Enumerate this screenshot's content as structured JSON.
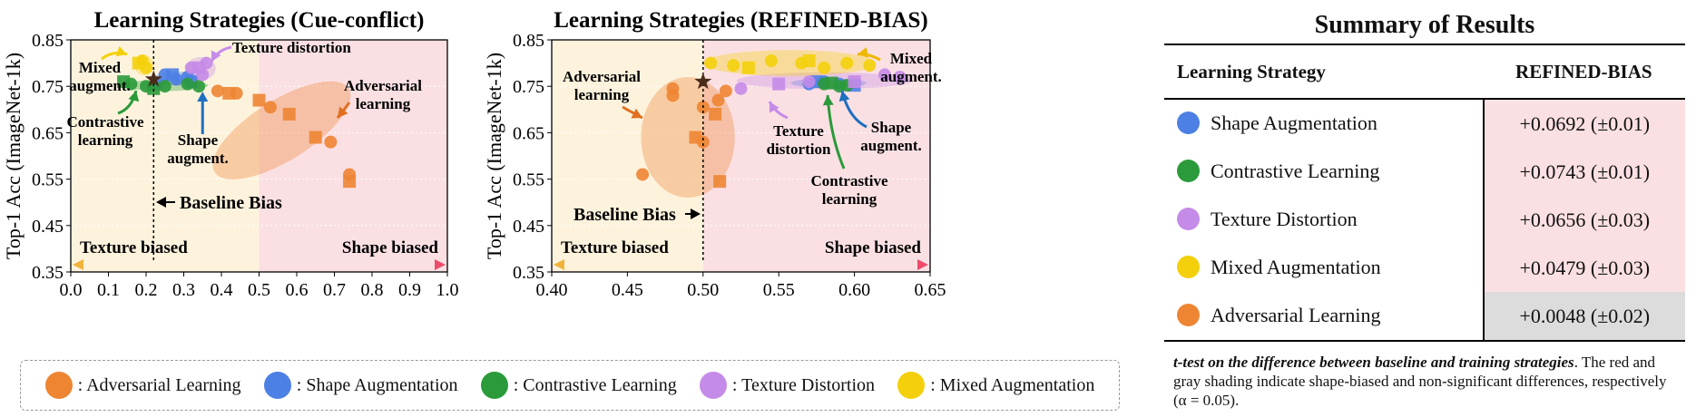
{
  "colors": {
    "adversarial": "#ee8533",
    "shape": "#4d80e4",
    "contrastive": "#2a9a3a",
    "texture": "#c58be8",
    "mixed": "#f4d00c",
    "texture_bg": "#fdf3dd",
    "shape_bg": "#fbe0e3",
    "sig_bg": "#fbe0e3",
    "nonsig_bg": "#dcdcdc"
  },
  "chart_data": [
    {
      "type": "scatter",
      "title": "Learning Strategies (Cue-conflict)",
      "xlabel": "",
      "ylabel": "Top-1 Acc (ImageNet-1k)",
      "xlim": [
        0.0,
        1.0
      ],
      "ylim": [
        0.35,
        0.85
      ],
      "xticks": [
        "0.0",
        "0.1",
        "0.2",
        "0.3",
        "0.4",
        "0.5",
        "0.6",
        "0.7",
        "0.8",
        "0.9",
        "1.0"
      ],
      "yticks": [
        "0.35",
        "0.45",
        "0.55",
        "0.65",
        "0.75",
        "0.85"
      ],
      "shape_region_start": 0.5,
      "baseline": {
        "x": 0.22,
        "y": 0.765,
        "label": "Baseline Bias"
      },
      "axis_arrow": {
        "left_label": "Texture biased",
        "right_label": "Shape biased"
      },
      "series": [
        {
          "name": "Adversarial Learning",
          "key": "adversarial",
          "circles": [
            [
              0.39,
              0.74
            ],
            [
              0.44,
              0.735
            ],
            [
              0.53,
              0.705
            ],
            [
              0.69,
              0.63
            ],
            [
              0.74,
              0.56
            ]
          ],
          "squares": [
            [
              0.42,
              0.735
            ],
            [
              0.5,
              0.72
            ],
            [
              0.58,
              0.69
            ],
            [
              0.65,
              0.64
            ],
            [
              0.74,
              0.545
            ]
          ],
          "ellipse": {
            "cx": 0.56,
            "cy": 0.655,
            "rx": 0.21,
            "ry": 0.065,
            "angle": -32
          }
        },
        {
          "name": "Shape Augmentation",
          "key": "shape",
          "circles": [
            [
              0.25,
              0.775
            ],
            [
              0.28,
              0.765
            ],
            [
              0.31,
              0.77
            ],
            [
              0.23,
              0.755
            ]
          ],
          "squares": [
            [
              0.27,
              0.775
            ],
            [
              0.32,
              0.76
            ]
          ],
          "ellipse": {
            "cx": 0.28,
            "cy": 0.767,
            "rx": 0.06,
            "ry": 0.015,
            "angle": 0
          }
        },
        {
          "name": "Contrastive Learning",
          "key": "contrastive",
          "circles": [
            [
              0.16,
              0.755
            ],
            [
              0.2,
              0.75
            ],
            [
              0.25,
              0.75
            ],
            [
              0.31,
              0.755
            ],
            [
              0.34,
              0.75
            ]
          ],
          "squares": [
            [
              0.14,
              0.76
            ],
            [
              0.22,
              0.745
            ]
          ],
          "ellipse": {
            "cx": 0.25,
            "cy": 0.752,
            "rx": 0.115,
            "ry": 0.012,
            "angle": 0
          }
        },
        {
          "name": "Texture Distortion",
          "key": "texture",
          "circles": [
            [
              0.32,
              0.79
            ],
            [
              0.35,
              0.775
            ],
            [
              0.36,
              0.8
            ]
          ],
          "squares": [
            [
              0.34,
              0.79
            ]
          ],
          "ellipse": {
            "cx": 0.345,
            "cy": 0.788,
            "rx": 0.04,
            "ry": 0.025,
            "angle": 0
          }
        },
        {
          "name": "Mixed Augmentation",
          "key": "mixed",
          "circles": [
            [
              0.19,
              0.805
            ],
            [
              0.2,
              0.79
            ]
          ],
          "squares": [
            [
              0.18,
              0.8
            ]
          ],
          "ellipse": {
            "cx": 0.195,
            "cy": 0.795,
            "rx": 0.025,
            "ry": 0.022,
            "angle": 0
          }
        }
      ],
      "annotations": {
        "mixed": "Mixed augment.",
        "contrastive": "Contrastive learning",
        "shape": "Shape augment.",
        "texture": "Texture distortion",
        "adversarial": "Adversarial learning"
      }
    },
    {
      "type": "scatter",
      "title": "Learning Strategies (REFINED-BIAS)",
      "xlabel": "",
      "ylabel": "Top-1 Acc (ImageNet-1k)",
      "xlim": [
        0.4,
        0.65
      ],
      "ylim": [
        0.35,
        0.85
      ],
      "xticks": [
        "0.40",
        "0.45",
        "0.50",
        "0.55",
        "0.60",
        "0.65"
      ],
      "yticks": [
        "0.35",
        "0.45",
        "0.55",
        "0.65",
        "0.75",
        "0.85"
      ],
      "shape_region_start": 0.5,
      "baseline": {
        "x": 0.5,
        "y": 0.76,
        "label": "Baseline Bias"
      },
      "axis_arrow": {
        "left_label": "Texture biased",
        "right_label": "Shape biased"
      },
      "series": [
        {
          "name": "Adversarial Learning",
          "key": "adversarial",
          "circles": [
            [
              0.46,
              0.56
            ],
            [
              0.48,
              0.745
            ],
            [
              0.48,
              0.73
            ],
            [
              0.5,
              0.705
            ],
            [
              0.5,
              0.63
            ],
            [
              0.51,
              0.72
            ],
            [
              0.515,
              0.74
            ]
          ],
          "squares": [
            [
              0.495,
              0.64
            ],
            [
              0.508,
              0.69
            ],
            [
              0.511,
              0.545
            ]
          ],
          "ellipse": {
            "cx": 0.49,
            "cy": 0.64,
            "rx": 0.031,
            "ry": 0.13,
            "angle": 0
          }
        },
        {
          "name": "Shape Augmentation",
          "key": "shape",
          "circles": [
            [
              0.57,
              0.755
            ],
            [
              0.58,
              0.76
            ],
            [
              0.59,
              0.755
            ]
          ],
          "squares": [
            [
              0.575,
              0.76
            ],
            [
              0.6,
              0.752
            ]
          ],
          "ellipse": {
            "cx": 0.583,
            "cy": 0.757,
            "rx": 0.025,
            "ry": 0.01,
            "angle": 0
          }
        },
        {
          "name": "Contrastive Learning",
          "key": "contrastive",
          "circles": [
            [
              0.58,
              0.755
            ],
            [
              0.59,
              0.75
            ],
            [
              0.595,
              0.752
            ]
          ],
          "squares": [
            [
              0.585,
              0.757
            ]
          ],
          "ellipse": {
            "cx": 0.585,
            "cy": 0.755,
            "rx": 0.02,
            "ry": 0.008,
            "angle": 0
          }
        },
        {
          "name": "Texture Distortion",
          "key": "texture",
          "circles": [
            [
              0.525,
              0.745
            ],
            [
              0.57,
              0.76
            ],
            [
              0.62,
              0.775
            ],
            [
              0.63,
              0.77
            ]
          ],
          "squares": [
            [
              0.55,
              0.755
            ],
            [
              0.6,
              0.76
            ]
          ],
          "ellipse": {
            "cx": 0.58,
            "cy": 0.762,
            "rx": 0.058,
            "ry": 0.018,
            "angle": 0
          }
        },
        {
          "name": "Mixed Augmentation",
          "key": "mixed",
          "circles": [
            [
              0.505,
              0.8
            ],
            [
              0.52,
              0.795
            ],
            [
              0.545,
              0.805
            ],
            [
              0.565,
              0.8
            ],
            [
              0.58,
              0.79
            ],
            [
              0.595,
              0.8
            ],
            [
              0.61,
              0.795
            ]
          ],
          "squares": [
            [
              0.53,
              0.79
            ],
            [
              0.57,
              0.805
            ]
          ],
          "ellipse": {
            "cx": 0.557,
            "cy": 0.8,
            "rx": 0.057,
            "ry": 0.028,
            "angle": 0
          }
        }
      ],
      "annotations": {
        "mixed": "Mixed augment.",
        "contrastive": "Contrastive learning",
        "shape": "Shape augment.",
        "texture": "Texture distortion",
        "adversarial": "Adversarial learning"
      }
    }
  ],
  "legend": {
    "items": [
      {
        "label": ": Adversarial Learning",
        "key": "adversarial"
      },
      {
        "label": ": Shape Augmentation",
        "key": "shape"
      },
      {
        "label": ": Contrastive Learning",
        "key": "contrastive"
      },
      {
        "label": ": Texture Distortion",
        "key": "texture"
      },
      {
        "label": ": Mixed Augmentation",
        "key": "mixed"
      }
    ]
  },
  "summary": {
    "title": "Summary of Results",
    "col1": "Learning Strategy",
    "col2": "REFINED-BIAS",
    "rows": [
      {
        "strategy": "Shape Augmentation",
        "value": "+0.0692 (±0.01)",
        "key": "shape",
        "significant": true
      },
      {
        "strategy": "Contrastive Learning",
        "value": "+0.0743 (±0.01)",
        "key": "contrastive",
        "significant": true
      },
      {
        "strategy": "Texture Distortion",
        "value": "+0.0656 (±0.03)",
        "key": "texture",
        "significant": true
      },
      {
        "strategy": "Mixed Augmentation",
        "value": "+0.0479 (±0.03)",
        "key": "mixed",
        "significant": true
      },
      {
        "strategy": "Adversarial Learning",
        "value": "+0.0048 (±0.02)",
        "key": "adversarial",
        "significant": false
      }
    ],
    "note_bold": "t-test on the difference between baseline and training strategies",
    "note_rest": ". The red and gray shading indicate shape-biased and non-significant differences, respectively (α = 0.05)."
  }
}
